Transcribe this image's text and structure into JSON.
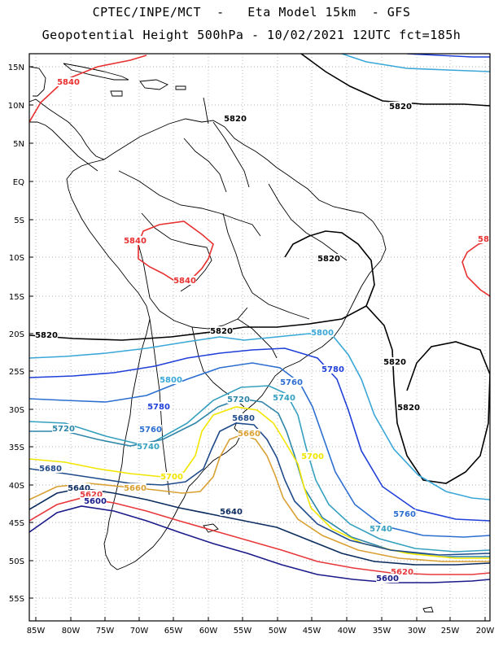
{
  "header": {
    "line1": "CPTEC/INPE/MCT  -   Eta Model 15km  - GFS",
    "line2": "Geopotential Height 500hPa - 10/02/2021 12UTC fct=185h"
  },
  "axes": {
    "lat_labels": [
      "15N",
      "10N",
      "5N",
      "EQ",
      "5S",
      "10S",
      "15S",
      "20S",
      "25S",
      "30S",
      "35S",
      "40S",
      "45S",
      "50S",
      "55S"
    ],
    "lon_labels": [
      "85W",
      "80W",
      "75W",
      "70W",
      "65W",
      "60W",
      "55W",
      "50W",
      "45W",
      "40W",
      "35W",
      "30W",
      "25W",
      "20W"
    ]
  },
  "contours": {
    "colors": {
      "5580": "#0b2a7a",
      "5600": "#1a1a8a",
      "5620": "#e8383b",
      "5640": "#0a2b5e",
      "5660": "#d9a033",
      "5680": "#1f4b8a",
      "5700": "#f2e600",
      "5720": "#2e86a8",
      "5740": "#36a0bf",
      "5760": "#2c6fd0",
      "5780": "#1f3fd8",
      "5800": "#3aa7d8",
      "5820": "#000000",
      "5840": "#e83030"
    },
    "labels": [
      {
        "text": "5840",
        "color": "#e83030"
      },
      {
        "text": "5820",
        "color": "#000000"
      },
      {
        "text": "5820",
        "color": "#000000"
      },
      {
        "text": "5840",
        "color": "#e83030"
      },
      {
        "text": "5840",
        "color": "#e83030"
      },
      {
        "text": "5820",
        "color": "#000000"
      },
      {
        "text": "5820",
        "color": "#000000"
      },
      {
        "text": "5820",
        "color": "#000000"
      },
      {
        "text": "5800",
        "color": "#3aa7d8"
      },
      {
        "text": "5780",
        "color": "#1f3fd8"
      },
      {
        "text": "5820",
        "color": "#000000"
      },
      {
        "text": "5820",
        "color": "#000000"
      },
      {
        "text": "5800",
        "color": "#3aa7d8"
      },
      {
        "text": "5780",
        "color": "#1f3fd8"
      },
      {
        "text": "5760",
        "color": "#2c6fd0"
      },
      {
        "text": "5740",
        "color": "#36a0bf"
      },
      {
        "text": "5720",
        "color": "#2e86a8"
      },
      {
        "text": "5760",
        "color": "#2c6fd0"
      },
      {
        "text": "5740",
        "color": "#36a0bf"
      },
      {
        "text": "5720",
        "color": "#2e86a8"
      },
      {
        "text": "5680",
        "color": "#1f4b8a"
      },
      {
        "text": "5660",
        "color": "#d9a033"
      },
      {
        "text": "5700",
        "color": "#f2e600"
      },
      {
        "text": "5700",
        "color": "#f2e600"
      },
      {
        "text": "5680",
        "color": "#1f4b8a"
      },
      {
        "text": "5660",
        "color": "#d9a033"
      },
      {
        "text": "5640",
        "color": "#0a2b5e"
      },
      {
        "text": "5620",
        "color": "#e8383b"
      },
      {
        "text": "5600",
        "color": "#1a1a8a"
      },
      {
        "text": "5640",
        "color": "#0a2b5e"
      },
      {
        "text": "5760",
        "color": "#2c6fd0"
      },
      {
        "text": "5740",
        "color": "#36a0bf"
      },
      {
        "text": "5620",
        "color": "#e8383b"
      },
      {
        "text": "5600",
        "color": "#1a1a8a"
      },
      {
        "text": "58",
        "color": "#e83030"
      }
    ]
  }
}
